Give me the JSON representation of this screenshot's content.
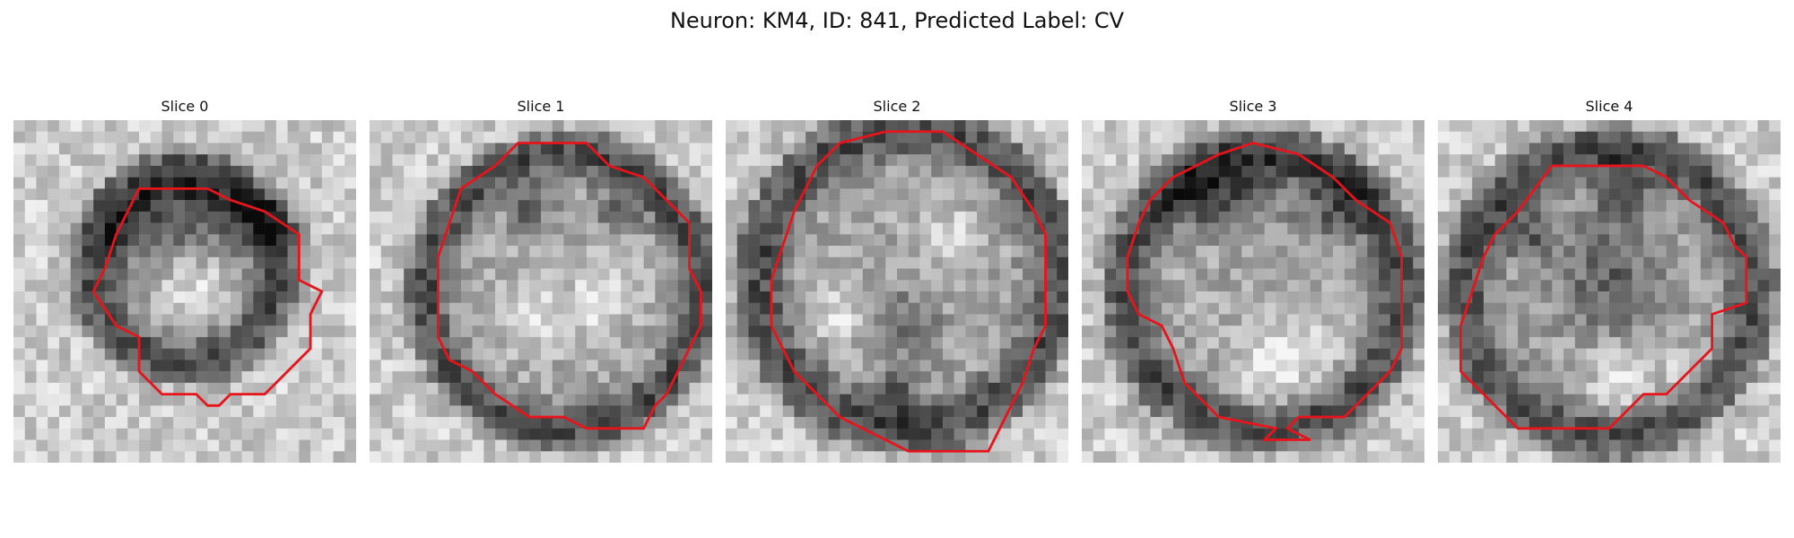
{
  "figure": {
    "title": "Neuron: KM4, ID: 841, Predicted Label: CV"
  },
  "colors": {
    "contour": "#e8141b",
    "background": "#ffffff",
    "colormap": "gray"
  },
  "panels": [
    {
      "title": "Slice 0"
    },
    {
      "title": "Slice 1"
    },
    {
      "title": "Slice 2"
    },
    {
      "title": "Slice 3"
    },
    {
      "title": "Slice 4"
    }
  ]
}
